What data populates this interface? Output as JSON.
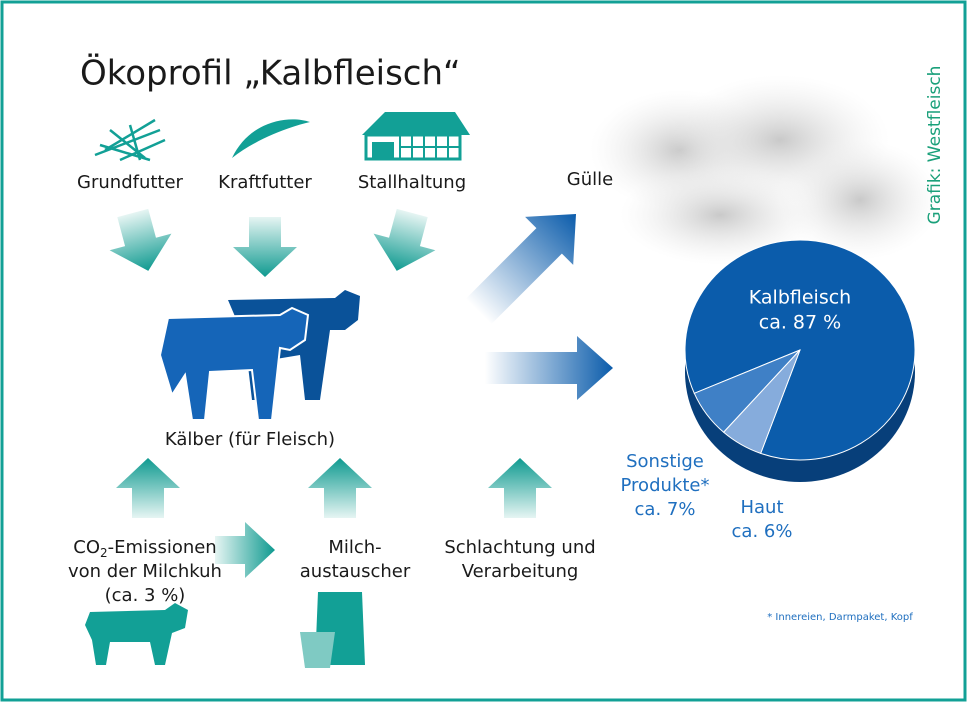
{
  "title": "Ökoprofil „Kalbfleisch“",
  "credit": "Grafik: Westfleisch",
  "inputs": [
    "Grundfutter",
    "Kraftfutter",
    "Stallhaltung"
  ],
  "center": "Kälber (für Fleisch)",
  "sources": {
    "co2": {
      "lead": "CO",
      "sub": "2",
      "rest": "-Emissionen",
      "line2": "von der Milchkuh",
      "line3": "(ca. 3 %)"
    },
    "milk": [
      "Milch-",
      "austauscher"
    ],
    "slaughter": [
      "Schlachtung und",
      "Verarbeitung"
    ]
  },
  "output": "Gülle",
  "pie": {
    "slices": [
      {
        "label": [
          "Kalbfleisch"
        ],
        "value": 87,
        "value_label": "ca. 87 %",
        "color": "#0b5cab"
      },
      {
        "label": [
          "Sonstige",
          "Produkte*"
        ],
        "value": 7,
        "value_label": "ca. 7%",
        "color": "#3f80c6"
      },
      {
        "label": [
          "Haut"
        ],
        "value": 6,
        "value_label": "ca. 6%",
        "color": "#86acdc"
      }
    ]
  },
  "footnote": "* Innereien, Darmpaket, Kopf"
}
